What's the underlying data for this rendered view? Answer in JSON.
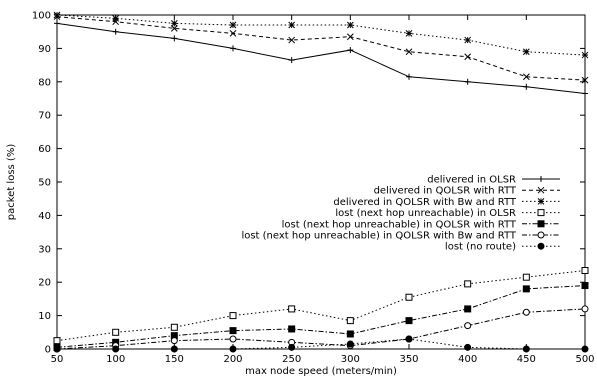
{
  "chart_data": {
    "type": "line",
    "title": "",
    "xlabel": "max node speed (meters/min)",
    "ylabel": "packet loss (%)",
    "xlim": [
      50,
      500
    ],
    "ylim": [
      0,
      100
    ],
    "x_ticks": [
      "50",
      "100",
      "150",
      "200",
      "250",
      "300",
      "350",
      "400",
      "450",
      "500"
    ],
    "y_ticks": [
      "0",
      "10",
      "20",
      "30",
      "40",
      "50",
      "60",
      "70",
      "80",
      "90",
      "100"
    ],
    "grid": false,
    "legend_position": "center-right",
    "x": [
      50,
      100,
      150,
      200,
      250,
      300,
      350,
      400,
      450,
      500
    ],
    "series": [
      {
        "name": "delivered in OLSR",
        "marker": "plus",
        "dash": "solid",
        "values": [
          97.5,
          95,
          93,
          90,
          86.5,
          89.5,
          81.5,
          80,
          78.5,
          76.5
        ]
      },
      {
        "name": "delivered in QOLSR with RTT",
        "marker": "cross",
        "dash": "dashed",
        "values": [
          99.5,
          98,
          96,
          94.5,
          92.5,
          93.5,
          89,
          87.5,
          81.5,
          80.5
        ]
      },
      {
        "name": "delivered in QOLSR with Bw and RTT",
        "marker": "star",
        "dash": "dotted",
        "values": [
          100,
          99,
          97.5,
          97,
          97,
          97,
          94.5,
          92.5,
          89,
          88
        ]
      },
      {
        "name": "lost (next hop unreachable) in OLSR",
        "marker": "square-open",
        "dash": "dotted",
        "values": [
          2.5,
          5,
          6.5,
          10,
          12,
          8.5,
          15.5,
          19.5,
          21.5,
          23.5
        ]
      },
      {
        "name": "lost (next hop unreachable) in QOLSR with RTT",
        "marker": "square-filled",
        "dash": "dashdot",
        "values": [
          0.5,
          2,
          4,
          5.5,
          6,
          4.5,
          8.5,
          12,
          18,
          19
        ]
      },
      {
        "name": "lost (next hop unreachable) in QOLSR with Bw and RTT",
        "marker": "circle-open",
        "dash": "dashdot",
        "values": [
          0,
          1,
          2.5,
          3,
          2,
          1,
          3,
          7,
          11,
          12
        ]
      },
      {
        "name": "lost (no route)",
        "marker": "circle-filled",
        "dash": "dotted",
        "values": [
          0,
          0,
          0,
          0,
          0.5,
          1.5,
          3,
          0.5,
          0,
          0
        ]
      }
    ]
  }
}
